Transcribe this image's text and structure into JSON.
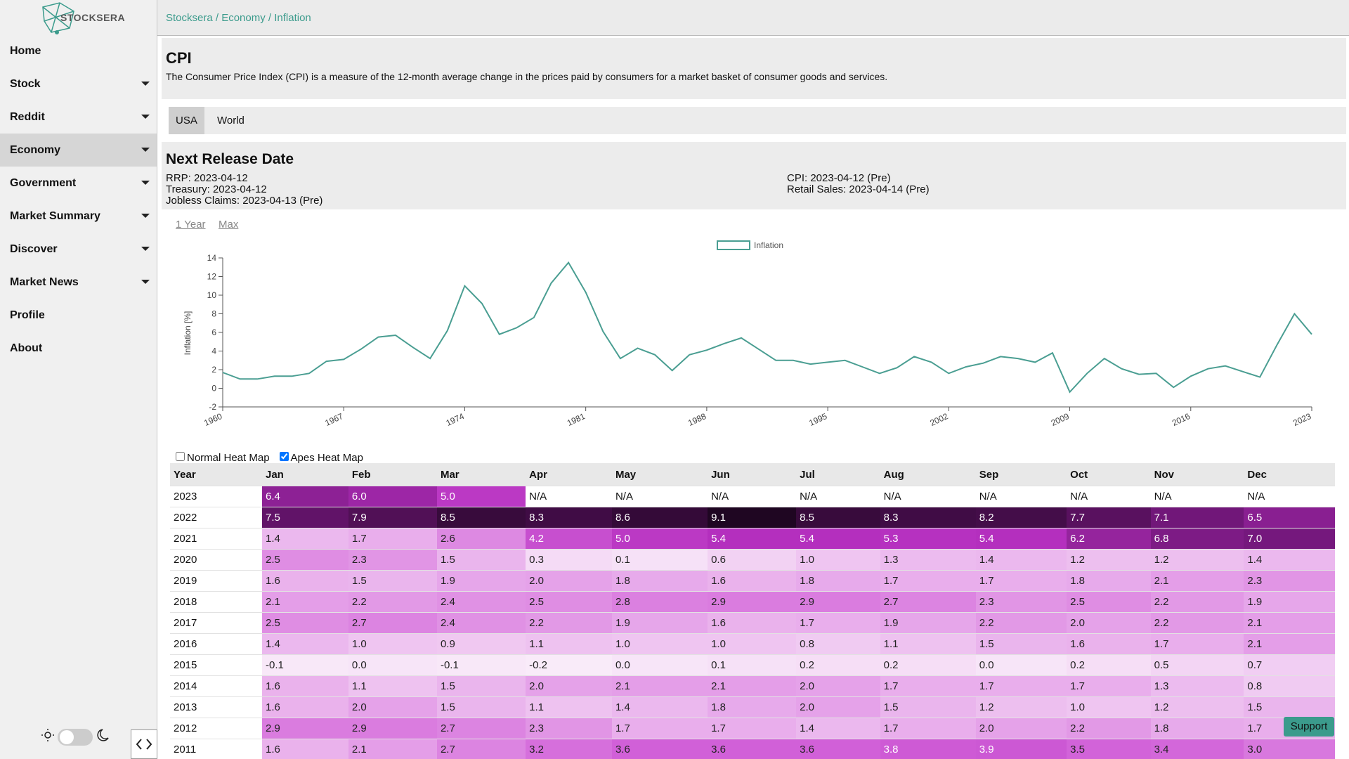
{
  "logo": "STOCKSERA",
  "breadcrumb": "Stocksera / Economy / Inflation",
  "nav": [
    {
      "label": "Home",
      "dropdown": false,
      "active": false
    },
    {
      "label": "Stock",
      "dropdown": true,
      "active": false
    },
    {
      "label": "Reddit",
      "dropdown": true,
      "active": false
    },
    {
      "label": "Economy",
      "dropdown": true,
      "active": true
    },
    {
      "label": "Government",
      "dropdown": true,
      "active": false
    },
    {
      "label": "Market Summary",
      "dropdown": true,
      "active": false
    },
    {
      "label": "Discover",
      "dropdown": true,
      "active": false
    },
    {
      "label": "Market News",
      "dropdown": true,
      "active": false
    },
    {
      "label": "Profile",
      "dropdown": false,
      "active": false
    },
    {
      "label": "About",
      "dropdown": false,
      "active": false
    }
  ],
  "header": {
    "title": "CPI",
    "description": "The Consumer Price Index (CPI) is a measure of the 12-month average change in the prices paid by consumers for a market basket of consumer goods and services."
  },
  "tabs": [
    {
      "label": "USA",
      "selected": true
    },
    {
      "label": "World",
      "selected": false
    }
  ],
  "release": {
    "title": "Next Release Date",
    "left": [
      "RRP: 2023-04-12",
      "Treasury: 2023-04-12",
      "Jobless Claims: 2023-04-13 (Pre)"
    ],
    "right": [
      "CPI: 2023-04-12 (Pre)",
      "Retail Sales: 2023-04-14 (Pre)"
    ]
  },
  "ranges": [
    "1 Year",
    "Max"
  ],
  "chart_data": {
    "type": "line",
    "ylabel": "Inflation [%]",
    "legend": "top",
    "x": [
      1960,
      1961,
      1962,
      1963,
      1964,
      1965,
      1966,
      1967,
      1968,
      1969,
      1970,
      1971,
      1972,
      1973,
      1974,
      1975,
      1976,
      1977,
      1978,
      1979,
      1980,
      1981,
      1982,
      1983,
      1984,
      1985,
      1986,
      1987,
      1988,
      1989,
      1990,
      1991,
      1992,
      1993,
      1994,
      1995,
      1996,
      1997,
      1998,
      1999,
      2000,
      2001,
      2002,
      2003,
      2004,
      2005,
      2006,
      2007,
      2008,
      2009,
      2010,
      2011,
      2012,
      2013,
      2014,
      2015,
      2016,
      2017,
      2018,
      2019,
      2020,
      2021,
      2022,
      2023
    ],
    "series": [
      {
        "name": "Inflation",
        "color": "#4a9e92",
        "values": [
          1.7,
          1.0,
          1.0,
          1.3,
          1.3,
          1.6,
          2.9,
          3.1,
          4.2,
          5.5,
          5.7,
          4.4,
          3.2,
          6.2,
          11.0,
          9.1,
          5.8,
          6.5,
          7.6,
          11.3,
          13.5,
          10.3,
          6.1,
          3.2,
          4.3,
          3.6,
          1.9,
          3.6,
          4.1,
          4.8,
          5.4,
          4.2,
          3.0,
          3.0,
          2.6,
          2.8,
          3.0,
          2.3,
          1.6,
          2.2,
          3.4,
          2.8,
          1.6,
          2.3,
          2.7,
          3.4,
          3.2,
          2.8,
          3.8,
          -0.4,
          1.6,
          3.2,
          2.1,
          1.5,
          1.6,
          0.1,
          1.3,
          2.1,
          2.4,
          1.8,
          1.2,
          4.7,
          8.0,
          5.8
        ]
      }
    ],
    "xlim": [
      1960,
      2023
    ],
    "xticks": [
      1960,
      1967,
      1974,
      1981,
      1988,
      1995,
      2002,
      2009,
      2016,
      2023
    ],
    "ylim": [
      -2,
      14
    ],
    "yticks": [
      -2,
      0,
      2,
      4,
      6,
      8,
      10,
      12,
      14
    ],
    "grid": false
  },
  "heatmap_options": [
    {
      "label": "Normal Heat Map",
      "checked": false
    },
    {
      "label": "Apes Heat Map",
      "checked": true
    }
  ],
  "table": {
    "heat_colors": [
      "#f9ebf9",
      "#e9b0ec",
      "#d262d9",
      "#b52fbf",
      "#6c1573",
      "#1f0622"
    ],
    "header": [
      "Year",
      "Jan",
      "Feb",
      "Mar",
      "Apr",
      "May",
      "Jun",
      "Jul",
      "Aug",
      "Sep",
      "Oct",
      "Nov",
      "Dec"
    ],
    "rows": [
      [
        "2023",
        "6.4",
        "6.0",
        "5.0",
        "N/A",
        "N/A",
        "N/A",
        "N/A",
        "N/A",
        "N/A",
        "N/A",
        "N/A",
        "N/A"
      ],
      [
        "2022",
        "7.5",
        "7.9",
        "8.5",
        "8.3",
        "8.6",
        "9.1",
        "8.5",
        "8.3",
        "8.2",
        "7.7",
        "7.1",
        "6.5"
      ],
      [
        "2021",
        "1.4",
        "1.7",
        "2.6",
        "4.2",
        "5.0",
        "5.4",
        "5.4",
        "5.3",
        "5.4",
        "6.2",
        "6.8",
        "7.0"
      ],
      [
        "2020",
        "2.5",
        "2.3",
        "1.5",
        "0.3",
        "0.1",
        "0.6",
        "1.0",
        "1.3",
        "1.4",
        "1.2",
        "1.2",
        "1.4"
      ],
      [
        "2019",
        "1.6",
        "1.5",
        "1.9",
        "2.0",
        "1.8",
        "1.6",
        "1.8",
        "1.7",
        "1.7",
        "1.8",
        "2.1",
        "2.3"
      ],
      [
        "2018",
        "2.1",
        "2.2",
        "2.4",
        "2.5",
        "2.8",
        "2.9",
        "2.9",
        "2.7",
        "2.3",
        "2.5",
        "2.2",
        "1.9"
      ],
      [
        "2017",
        "2.5",
        "2.7",
        "2.4",
        "2.2",
        "1.9",
        "1.6",
        "1.7",
        "1.9",
        "2.2",
        "2.0",
        "2.2",
        "2.1"
      ],
      [
        "2016",
        "1.4",
        "1.0",
        "0.9",
        "1.1",
        "1.0",
        "1.0",
        "0.8",
        "1.1",
        "1.5",
        "1.6",
        "1.7",
        "2.1"
      ],
      [
        "2015",
        "-0.1",
        "0.0",
        "-0.1",
        "-0.2",
        "0.0",
        "0.1",
        "0.2",
        "0.2",
        "0.0",
        "0.2",
        "0.5",
        "0.7"
      ],
      [
        "2014",
        "1.6",
        "1.1",
        "1.5",
        "2.0",
        "2.1",
        "2.1",
        "2.0",
        "1.7",
        "1.7",
        "1.7",
        "1.3",
        "0.8"
      ],
      [
        "2013",
        "1.6",
        "2.0",
        "1.5",
        "1.1",
        "1.4",
        "1.8",
        "2.0",
        "1.5",
        "1.2",
        "1.0",
        "1.2",
        "1.5"
      ],
      [
        "2012",
        "2.9",
        "2.9",
        "2.7",
        "2.3",
        "1.7",
        "1.7",
        "1.4",
        "1.7",
        "2.0",
        "2.2",
        "1.8",
        "1.7"
      ],
      [
        "2011",
        "1.6",
        "2.1",
        "2.7",
        "3.2",
        "3.6",
        "3.6",
        "3.6",
        "3.8",
        "3.9",
        "3.5",
        "3.4",
        "3.0"
      ]
    ]
  },
  "support": "Support"
}
